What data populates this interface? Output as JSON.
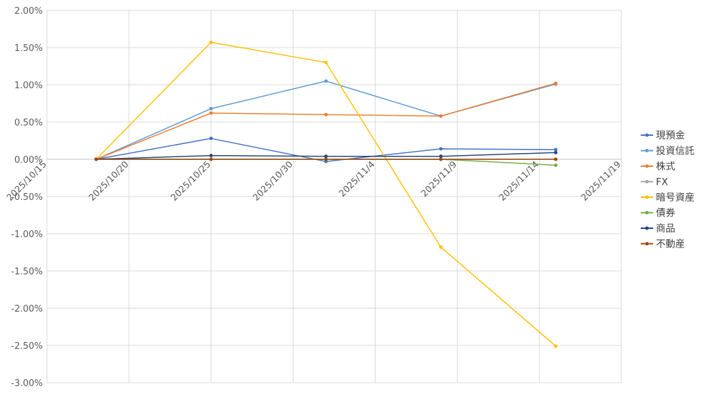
{
  "chart_data": {
    "type": "line",
    "title": "",
    "xlabel": "",
    "ylabel": "",
    "x": [
      "2025/10/18",
      "2025/10/25",
      "2025/11/1",
      "2025/11/8",
      "2025/11/15"
    ],
    "xlim": [
      "2025/10/15",
      "2025/11/19"
    ],
    "x_ticks": [
      "2025/10/15",
      "2025/10/20",
      "2025/10/25",
      "2025/10/30",
      "2025/11/4",
      "2025/11/9",
      "2025/11/14",
      "2025/11/19"
    ],
    "ylim": [
      -3.0,
      2.0
    ],
    "y_ticks": [
      "2.00%",
      "1.50%",
      "1.00%",
      "0.50%",
      "0.00%",
      "-0.50%",
      "-1.00%",
      "-1.50%",
      "-2.00%",
      "-2.50%",
      "-3.00%"
    ],
    "y_tick_values": [
      2.0,
      1.5,
      1.0,
      0.5,
      0.0,
      -0.5,
      -1.0,
      -1.5,
      -2.0,
      -2.5,
      -3.0
    ],
    "grid": true,
    "legend_position": "right",
    "series": [
      {
        "name": "現預金",
        "color": "#4472C4",
        "values": [
          0,
          0.28,
          -0.03,
          0.14,
          0.13
        ]
      },
      {
        "name": "投資信託",
        "color": "#5B9BD5",
        "values": [
          0,
          0.68,
          1.05,
          0.58,
          1.01
        ]
      },
      {
        "name": "株式",
        "color": "#ED7D31",
        "values": [
          0,
          0.62,
          0.6,
          0.58,
          1.02
        ]
      },
      {
        "name": "FX",
        "color": "#A5A5A5",
        "values": [
          0,
          0.0,
          0.0,
          0.0,
          0.0
        ]
      },
      {
        "name": "暗号資産",
        "color": "#FFC000",
        "values": [
          0,
          1.57,
          1.3,
          -1.18,
          -2.51
        ]
      },
      {
        "name": "債券",
        "color": "#70AD47",
        "values": [
          0,
          0.0,
          0.0,
          0.0,
          -0.08
        ]
      },
      {
        "name": "商品",
        "color": "#264478",
        "values": [
          0,
          0.05,
          0.04,
          0.04,
          0.09
        ]
      },
      {
        "name": "不動産",
        "color": "#9E480E",
        "values": [
          0,
          0.0,
          0.0,
          0.0,
          0.0
        ]
      }
    ]
  }
}
